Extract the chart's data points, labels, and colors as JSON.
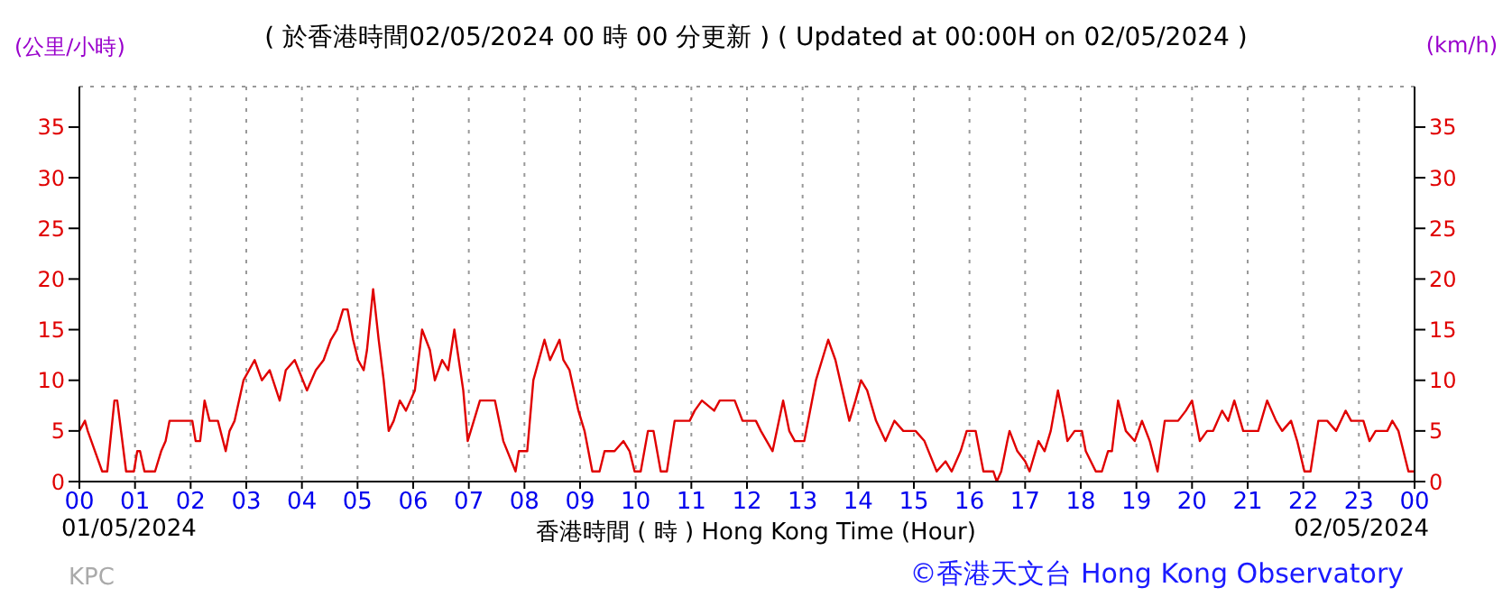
{
  "chart_data": {
    "type": "line",
    "title": "( 於香港時間02/05/2024 00 時 00 分更新 ) ( Updated at 00:00H on 02/05/2024 )",
    "xlabel": "香港時間 ( 時 ) Hong Kong Time (Hour)",
    "ylabel": "(公里/小時)",
    "y2label": "(km/h)",
    "annotations": [
      "01/05/2024",
      "02/05/2024",
      "KPC",
      "©香港天文台 Hong Kong Observatory"
    ],
    "x": [
      0,
      0.1,
      0.15,
      0.41,
      0.5,
      0.63,
      0.68,
      0.84,
      0.98,
      1.04,
      1.09,
      1.17,
      1.36,
      1.47,
      1.55,
      1.62,
      2.03,
      2.09,
      2.17,
      2.25,
      2.34,
      2.49,
      2.63,
      2.7,
      2.79,
      2.95,
      3.15,
      3.28,
      3.42,
      3.6,
      3.71,
      3.87,
      4.09,
      4.25,
      4.39,
      4.52,
      4.63,
      4.74,
      4.82,
      4.92,
      5.01,
      5.11,
      5.17,
      5.28,
      5.38,
      5.47,
      5.56,
      5.65,
      5.76,
      5.87,
      6.03,
      6.16,
      6.3,
      6.39,
      6.52,
      6.63,
      6.74,
      6.9,
      6.98,
      7.2,
      7.47,
      7.62,
      7.84,
      7.9,
      8.05,
      8.16,
      8.36,
      8.46,
      8.63,
      8.7,
      8.81,
      8.97,
      9.08,
      9.22,
      9.35,
      9.44,
      9.62,
      9.78,
      9.89,
      9.98,
      10.09,
      10.22,
      10.32,
      10.45,
      10.56,
      10.7,
      10.97,
      11.06,
      11.19,
      11.41,
      11.51,
      11.78,
      11.92,
      12.16,
      12.25,
      12.46,
      12.65,
      12.76,
      12.86,
      13.03,
      13.24,
      13.46,
      13.59,
      13.84,
      13.95,
      14.05,
      14.16,
      14.32,
      14.49,
      14.65,
      14.81,
      15.03,
      15.19,
      15.41,
      15.57,
      15.68,
      15.84,
      15.95,
      16.11,
      16.25,
      16.43,
      16.49,
      16.57,
      16.68,
      16.72,
      16.86,
      17,
      17.08,
      17.24,
      17.35,
      17.46,
      17.59,
      17.7,
      17.76,
      17.89,
      18.02,
      18.09,
      18.27,
      18.38,
      18.49,
      18.56,
      18.67,
      18.81,
      18.97,
      19.1,
      19.24,
      19.38,
      19.51,
      19.75,
      19.89,
      20,
      20.14,
      20.27,
      20.38,
      20.54,
      20.65,
      20.76,
      20.92,
      21.19,
      21.35,
      21.51,
      21.62,
      21.78,
      21.89,
      22.02,
      22.13,
      22.27,
      22.43,
      22.59,
      22.76,
      22.86,
      23.08,
      23.19,
      23.3,
      23.51,
      23.6,
      23.71,
      23.89,
      24
    ],
    "series": [
      {
        "color": "#e00000",
        "values": [
          5,
          6,
          5,
          1,
          1,
          8,
          8,
          1,
          1,
          3,
          3,
          1,
          1,
          3,
          4,
          6,
          6,
          4,
          4,
          8,
          6,
          6,
          3,
          5,
          6,
          10,
          12,
          10,
          11,
          8,
          11,
          12,
          9,
          11,
          12,
          14,
          15,
          17,
          17,
          14,
          12,
          11,
          13,
          19,
          14,
          10,
          5,
          6,
          8,
          7,
          9,
          15,
          13,
          10,
          12,
          11,
          15,
          9,
          4,
          8,
          8,
          4,
          1,
          3,
          3,
          10,
          14,
          12,
          14,
          12,
          11,
          7,
          5,
          1,
          1,
          3,
          3,
          4,
          3,
          1,
          1,
          5,
          5,
          1,
          1,
          6,
          6,
          7,
          8,
          7,
          8,
          8,
          6,
          6,
          5,
          3,
          8,
          5,
          4,
          4,
          10,
          14,
          12,
          6,
          8,
          10,
          9,
          6,
          4,
          6,
          5,
          5,
          4,
          1,
          2,
          1,
          3,
          5,
          5,
          1,
          1,
          0,
          1,
          4,
          5,
          3,
          2,
          1,
          4,
          3,
          5,
          9,
          6,
          4,
          5,
          5,
          3,
          1,
          1,
          3,
          3,
          8,
          5,
          4,
          6,
          4,
          1,
          6,
          6,
          7,
          8,
          4,
          5,
          5,
          7,
          6,
          8,
          5,
          5,
          8,
          6,
          5,
          6,
          4,
          1,
          1,
          6,
          6,
          5,
          7,
          6,
          6,
          4,
          5,
          5,
          6,
          5,
          1,
          1
        ]
      }
    ],
    "xlim": [
      0,
      24
    ],
    "xticks": [
      {
        "value": 0,
        "label": "00"
      },
      {
        "value": 1,
        "label": "01"
      },
      {
        "value": 2,
        "label": "02"
      },
      {
        "value": 3,
        "label": "03"
      },
      {
        "value": 4,
        "label": "04"
      },
      {
        "value": 5,
        "label": "05"
      },
      {
        "value": 6,
        "label": "06"
      },
      {
        "value": 7,
        "label": "07"
      },
      {
        "value": 8,
        "label": "08"
      },
      {
        "value": 9,
        "label": "09"
      },
      {
        "value": 10,
        "label": "10"
      },
      {
        "value": 11,
        "label": "11"
      },
      {
        "value": 12,
        "label": "12"
      },
      {
        "value": 13,
        "label": "13"
      },
      {
        "value": 14,
        "label": "14"
      },
      {
        "value": 15,
        "label": "15"
      },
      {
        "value": 16,
        "label": "16"
      },
      {
        "value": 17,
        "label": "17"
      },
      {
        "value": 18,
        "label": "18"
      },
      {
        "value": 19,
        "label": "19"
      },
      {
        "value": 20,
        "label": "20"
      },
      {
        "value": 21,
        "label": "21"
      },
      {
        "value": 22,
        "label": "22"
      },
      {
        "value": 23,
        "label": "23"
      },
      {
        "value": 24,
        "label": "00"
      }
    ],
    "ylim": [
      0,
      39
    ],
    "yticks": [
      0,
      5,
      10,
      15,
      20,
      25,
      30,
      35
    ],
    "y2lim": [
      0,
      39
    ],
    "y2ticks": [
      0,
      5,
      10,
      15,
      20,
      25,
      30,
      35
    ],
    "grid": true,
    "legend": false,
    "marker": "none",
    "line_style": "solid"
  }
}
